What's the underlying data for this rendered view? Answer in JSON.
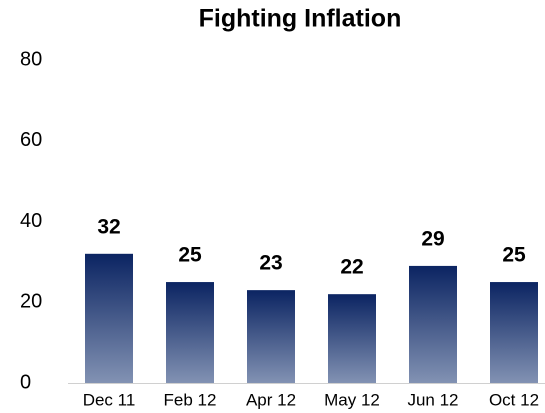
{
  "chart_data": {
    "type": "bar",
    "title": "Fighting Inflation",
    "categories": [
      "Dec 11",
      "Feb 12",
      "Apr 12",
      "May 12",
      "Jun 12",
      "Oct 12"
    ],
    "values": [
      32,
      25,
      23,
      22,
      29,
      25
    ],
    "color": "#0b2462",
    "color_end": "#8292b3",
    "ylim": [
      0,
      80
    ],
    "yticks": [
      0,
      20,
      40,
      60,
      80
    ],
    "grid": false
  }
}
